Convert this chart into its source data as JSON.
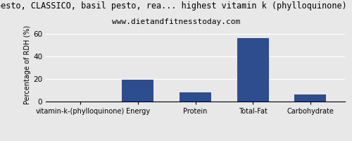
{
  "title": "pesto, CLASSICO, basil pesto, rea... highest vitamin k (phylloquinone) p",
  "subtitle": "www.dietandfitnesstoday.com",
  "categories": [
    "vitamin-k-(phylloquinone)",
    "Energy",
    "Protein",
    "Total-Fat",
    "Carbohydrate"
  ],
  "values": [
    0,
    19.5,
    8.0,
    56.0,
    6.0
  ],
  "bar_color": "#2e4d8e",
  "ylabel": "Percentage of RDH (%)",
  "ylim": [
    0,
    65
  ],
  "yticks": [
    0,
    20,
    40,
    60
  ],
  "background_color": "#e8e8e8",
  "title_fontsize": 8.5,
  "subtitle_fontsize": 8,
  "ylabel_fontsize": 7,
  "xlabel_fontsize": 7
}
